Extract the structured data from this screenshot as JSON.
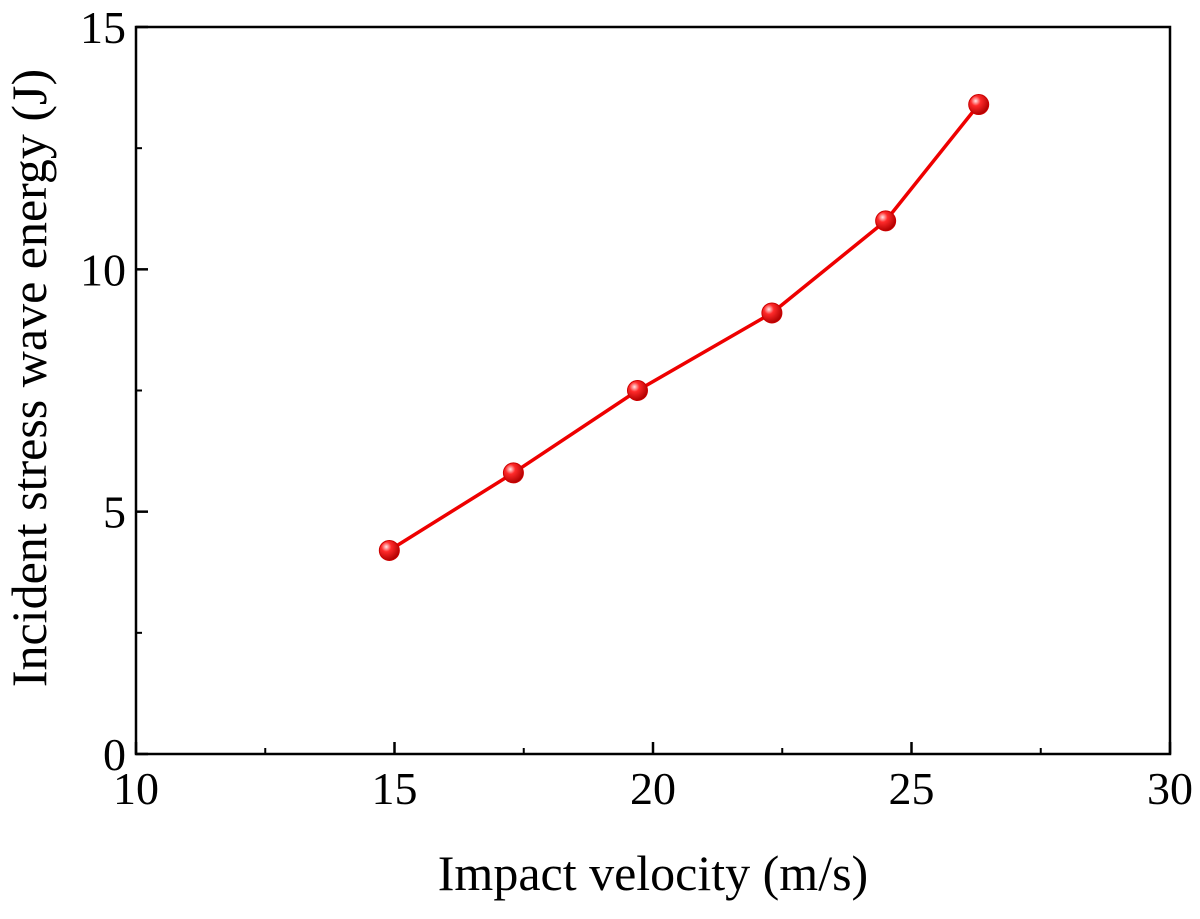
{
  "chart_data": {
    "type": "line",
    "title": "",
    "xlabel": "Impact velocity (m/s)",
    "ylabel": "Incident stress wave energy (J)",
    "xlim": [
      10,
      30
    ],
    "ylim": [
      0,
      15
    ],
    "x_major_ticks": [
      10,
      15,
      20,
      25,
      30
    ],
    "x_minor_ticks": [
      12.5,
      17.5,
      22.5,
      27.5
    ],
    "y_major_ticks": [
      0,
      5,
      10,
      15
    ],
    "y_minor_ticks": [
      2.5,
      7.5,
      12.5
    ],
    "x_tick_labels": [
      "10",
      "15",
      "20",
      "25",
      "30"
    ],
    "y_tick_labels": [
      "0",
      "5",
      "10",
      "15"
    ],
    "grid": false,
    "series": [
      {
        "name": "Incident stress wave energy",
        "color": "#ee0000",
        "marker": "circle",
        "x": [
          14.9,
          17.3,
          19.7,
          22.3,
          24.5,
          26.3
        ],
        "y": [
          4.2,
          5.8,
          7.5,
          9.1,
          11.0,
          13.4
        ]
      }
    ]
  }
}
